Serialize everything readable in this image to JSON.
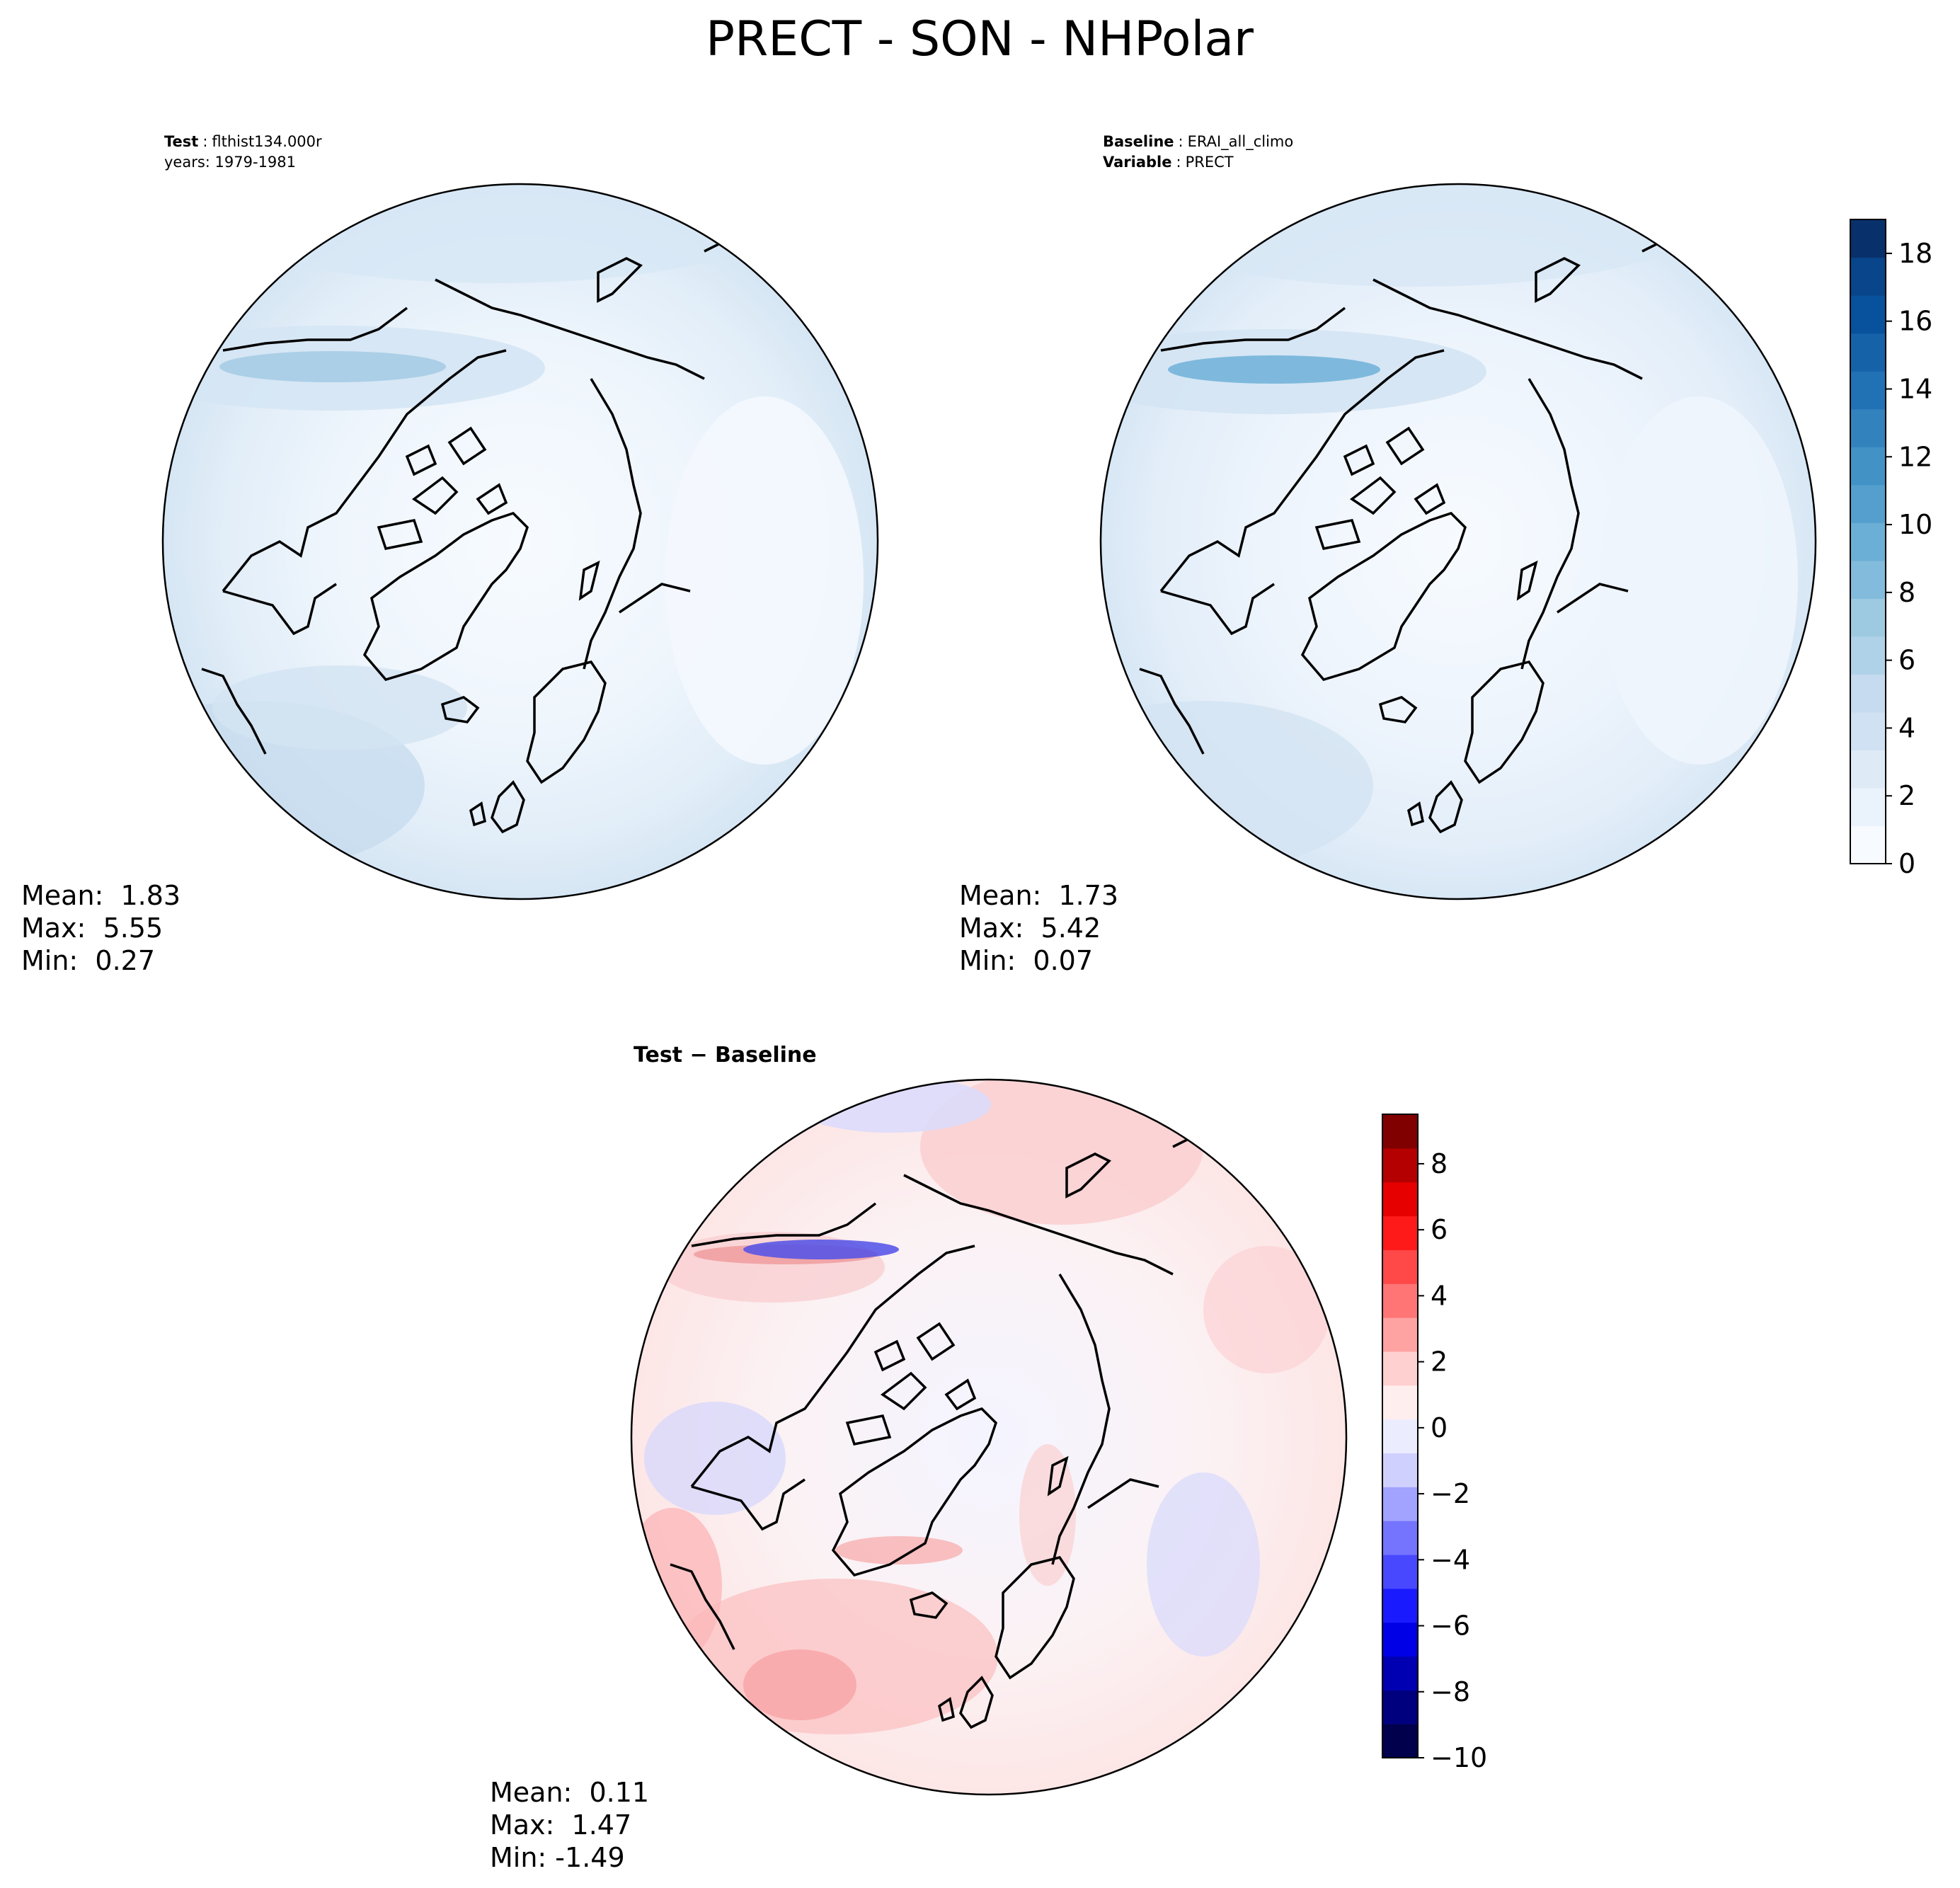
{
  "figure": {
    "title": "PRECT - SON - NHPolar"
  },
  "colors": {
    "blues": [
      "#f7fbff",
      "#eaf2fb",
      "#deebf7",
      "#cfe1f2",
      "#c6dbef",
      "#b0d2e8",
      "#9ecae1",
      "#82bbdb",
      "#6baed6",
      "#549fcd",
      "#4292c6",
      "#3282be",
      "#2171b5",
      "#1562a9",
      "#08519c",
      "#08458a",
      "#08306b"
    ],
    "diverging": [
      "#00004c",
      "#00007e",
      "#0000b2",
      "#0000e6",
      "#1a1aff",
      "#4848ff",
      "#7474ff",
      "#a2a2ff",
      "#d0d0ff",
      "#ececff",
      "#ffeeee",
      "#ffd0d0",
      "#ffa2a2",
      "#ff7474",
      "#ff4848",
      "#ff1a1a",
      "#e60000",
      "#b40000",
      "#800000"
    ]
  },
  "chart_data": [
    {
      "type": "heatmap",
      "projection": "north-polar-stereographic",
      "title_label": "Test",
      "title_sep": ":",
      "title_value": "flthist134.000r",
      "subtitle": "years: 1979-1981",
      "colormap": "Blues",
      "range": [
        0,
        19
      ],
      "stats": {
        "mean_label": "Mean:  1.83",
        "max_label": "Max:  5.55",
        "min_label": "Min:  0.27"
      }
    },
    {
      "type": "heatmap",
      "projection": "north-polar-stereographic",
      "title_label": "Baseline",
      "title_sep": ":",
      "title_value": "ERAI_all_climo",
      "subtitle_label": "Variable",
      "subtitle_value": "PRECT",
      "colormap": "Blues",
      "range": [
        0,
        19
      ],
      "colorbar": {
        "ticks": [
          0,
          2,
          4,
          6,
          8,
          10,
          12,
          14,
          16,
          18
        ],
        "tick_labels": [
          "0",
          "2",
          "4",
          "6",
          "8",
          "10",
          "12",
          "14",
          "16",
          "18"
        ],
        "vmin": 0,
        "vmax": 19
      },
      "stats": {
        "mean_label": "Mean:  1.73",
        "max_label": "Max:  5.42",
        "min_label": "Min:  0.07"
      }
    },
    {
      "type": "heatmap",
      "projection": "north-polar-stereographic",
      "title_label": "Test − Baseline",
      "colormap": "seismic",
      "range": [
        -10,
        9.5
      ],
      "colorbar": {
        "ticks": [
          -10,
          -8,
          -6,
          -4,
          -2,
          0,
          2,
          4,
          6,
          8
        ],
        "tick_labels": [
          "−10",
          "−8",
          "−6",
          "−4",
          "−2",
          "0",
          "2",
          "4",
          "6",
          "8"
        ],
        "vmin": -10,
        "vmax": 9.5
      },
      "stats": {
        "mean_label": "Mean:  0.11",
        "max_label": "Max:  1.47",
        "min_label": "Min: -1.49"
      }
    }
  ]
}
